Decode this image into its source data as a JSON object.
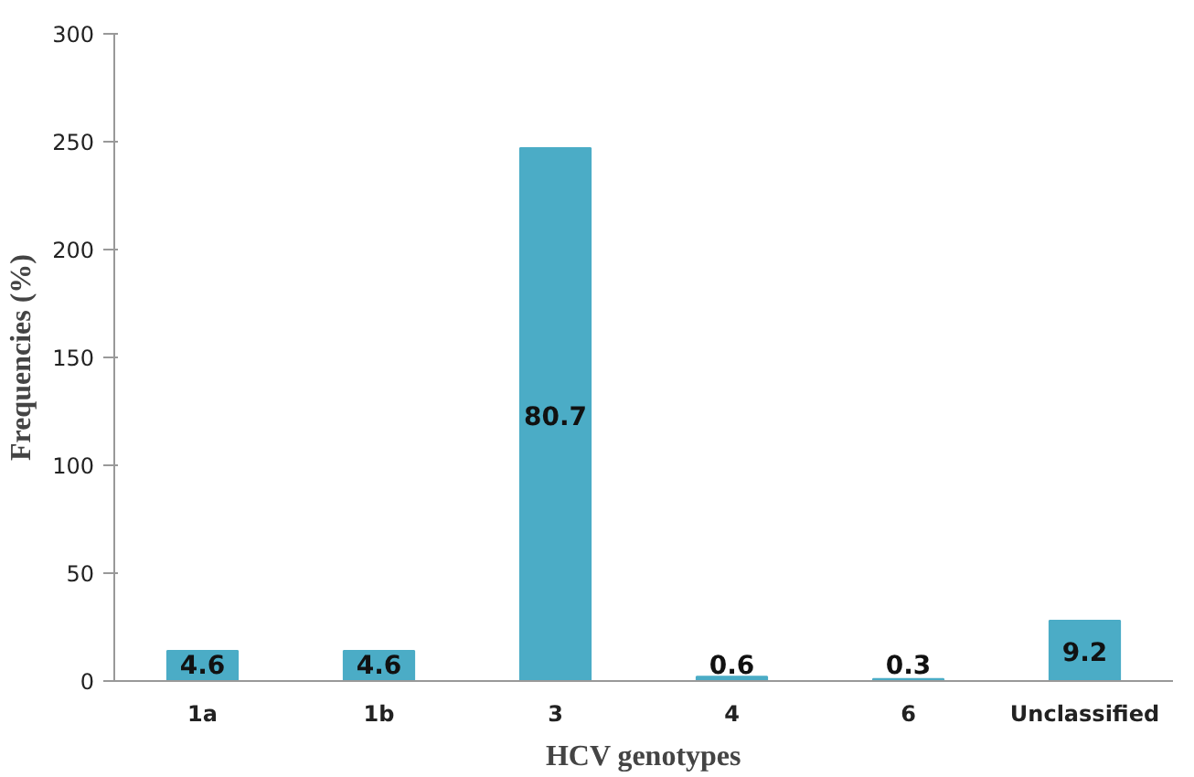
{
  "chart_data": {
    "type": "bar",
    "xlabel": "HCV genotypes",
    "ylabel": "Frequencies (%)",
    "categories": [
      "1a",
      "1b",
      "3",
      "4",
      "6",
      "Unclassified"
    ],
    "values": [
      14,
      14,
      247,
      2,
      1,
      28
    ],
    "annotations": [
      "4.6",
      "4.6",
      "80.7",
      "0.6",
      "0.3",
      "9.2"
    ],
    "color": "#4bacc6",
    "ylim": [
      0,
      300
    ],
    "yticks": [
      0,
      50,
      100,
      150,
      200,
      250,
      300
    ],
    "grid": false
  }
}
